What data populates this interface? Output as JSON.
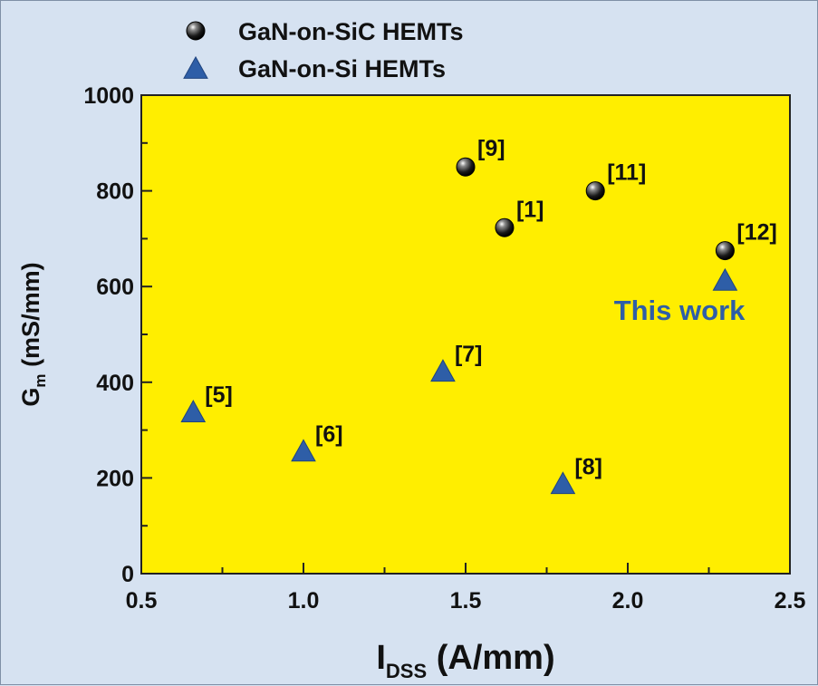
{
  "chart_data": {
    "type": "scatter",
    "xlim": [
      0.5,
      2.5
    ],
    "ylim": [
      0,
      1000
    ],
    "x_ticks": [
      "0.5",
      "1.0",
      "1.5",
      "2.0",
      "2.5"
    ],
    "y_ticks": [
      "0",
      "200",
      "400",
      "600",
      "800",
      "1000"
    ],
    "xlabel": {
      "main": "I",
      "sub": "DSS",
      "unit": " (A/mm)"
    },
    "ylabel": {
      "main": "G",
      "sub": "m",
      "unit": " (mS/mm)"
    },
    "plot_background": "#ffee00",
    "grid": false,
    "legend_position": "top-left",
    "series": [
      {
        "name": "GaN-on-SiC HEMTs",
        "marker": "sphere",
        "color": "#111111",
        "points": [
          {
            "x": 1.5,
            "y": 850,
            "label": "[9]"
          },
          {
            "x": 1.62,
            "y": 723,
            "label": "[1]"
          },
          {
            "x": 1.9,
            "y": 800,
            "label": "[11]"
          },
          {
            "x": 2.3,
            "y": 675,
            "label": "[12]"
          }
        ]
      },
      {
        "name": "GaN-on-Si HEMTs",
        "marker": "triangle",
        "color": "#2e5ea7",
        "points": [
          {
            "x": 0.66,
            "y": 335,
            "label": "[5]"
          },
          {
            "x": 1.0,
            "y": 253,
            "label": "[6]"
          },
          {
            "x": 1.43,
            "y": 420,
            "label": "[7]"
          },
          {
            "x": 1.8,
            "y": 185,
            "label": "[8]"
          },
          {
            "x": 2.3,
            "y": 610,
            "label": ""
          }
        ]
      }
    ],
    "annotation": "This work"
  }
}
